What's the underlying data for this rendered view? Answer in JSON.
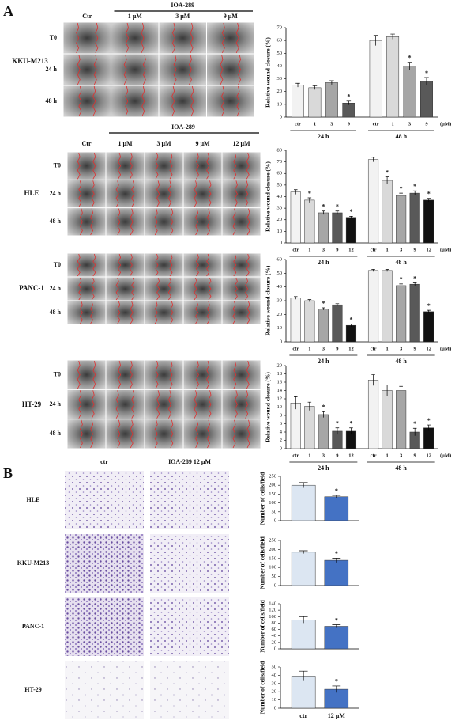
{
  "panel_a": {
    "label": "A",
    "rows": [
      {
        "cell_line": "KKU-M213",
        "treatment": "IOA-289",
        "columns": [
          "Ctr",
          "1 μM",
          "3 μM",
          "9 μM"
        ],
        "times": [
          "T0",
          "24 h",
          "48 h"
        ]
      },
      {
        "cell_line": "HLE",
        "treatment": "IOA-289",
        "columns": [
          "Ctr",
          "1 μM",
          "3 μM",
          "9 μM",
          "12 μM"
        ],
        "times": [
          "T0",
          "24 h",
          "48 h"
        ]
      },
      {
        "cell_line": "PANC-1",
        "times": [
          "T0",
          "24 h",
          "48 h"
        ]
      },
      {
        "cell_line": "HT-29",
        "times": [
          "T0",
          "24 h",
          "48 h"
        ]
      }
    ]
  },
  "panel_b": {
    "label": "B",
    "columns": [
      "ctr",
      "IOA-289 12 μM"
    ],
    "cell_lines": [
      "HLE",
      "KKU-M213",
      "PANC-1",
      "HT-29"
    ]
  },
  "chart_data": [
    {
      "type": "bar",
      "y_label": "Relative wound closure (%)",
      "categories": [
        "ctr",
        "1",
        "3",
        "9",
        "ctr",
        "1",
        "3",
        "9"
      ],
      "groups": [
        "24 h",
        "48 h"
      ],
      "unit": "(μM)",
      "values": [
        25,
        23,
        27,
        11,
        60,
        63,
        40,
        28
      ],
      "errors": [
        1.5,
        1.5,
        1.5,
        1.5,
        4,
        2,
        3,
        3
      ],
      "colors": [
        "#f2f2f2",
        "#d9d9d9",
        "#a6a6a6",
        "#595959",
        "#f2f2f2",
        "#d9d9d9",
        "#a6a6a6",
        "#595959"
      ],
      "significant": [
        3,
        6,
        7
      ],
      "marker": "*",
      "ylim": [
        0,
        70
      ],
      "yticks": [
        0,
        10,
        20,
        30,
        40,
        50,
        60,
        70
      ]
    },
    {
      "type": "bar",
      "y_label": "Relative wound closure (%)",
      "categories": [
        "ctr",
        "1",
        "3",
        "9",
        "12",
        "ctr",
        "1",
        "3",
        "9",
        "12"
      ],
      "groups": [
        "24 h",
        "48 h"
      ],
      "unit": "(μM)",
      "values": [
        44,
        37,
        26,
        26,
        22,
        72,
        54,
        41,
        43,
        37
      ],
      "errors": [
        2,
        2,
        1.5,
        1.5,
        1,
        2,
        3,
        2,
        2,
        1.5
      ],
      "colors": [
        "#f2f2f2",
        "#d9d9d9",
        "#a6a6a6",
        "#595959",
        "#111111",
        "#f2f2f2",
        "#d9d9d9",
        "#a6a6a6",
        "#595959",
        "#111111"
      ],
      "significant": [
        1,
        2,
        3,
        4,
        6,
        7,
        8,
        9
      ],
      "marker": "*",
      "ylim": [
        0,
        80
      ],
      "yticks": [
        0,
        10,
        20,
        30,
        40,
        50,
        60,
        70,
        80
      ]
    },
    {
      "type": "bar",
      "y_label": "Relative wound closure (%)",
      "categories": [
        "ctr",
        "1",
        "3",
        "9",
        "12",
        "ctr",
        "1",
        "3",
        "9",
        "12"
      ],
      "groups": [
        "24 h",
        "48 h"
      ],
      "unit": "(μM)",
      "values": [
        32,
        30,
        24,
        27,
        12,
        52,
        52,
        41,
        42,
        22
      ],
      "errors": [
        1,
        0.8,
        0.8,
        0.8,
        1,
        0.8,
        0.8,
        1.2,
        1,
        1
      ],
      "colors": [
        "#f2f2f2",
        "#d9d9d9",
        "#a6a6a6",
        "#595959",
        "#111111",
        "#f2f2f2",
        "#d9d9d9",
        "#a6a6a6",
        "#595959",
        "#111111"
      ],
      "significant": [
        2,
        4,
        7,
        8,
        9
      ],
      "marker": "*",
      "ylim": [
        0,
        60
      ],
      "yticks": [
        0,
        10,
        20,
        30,
        40,
        50,
        60
      ]
    },
    {
      "type": "bar",
      "y_label": "Relative wound closure (%)",
      "categories": [
        "ctr",
        "1",
        "3",
        "9",
        "12",
        "ctr",
        "1",
        "3",
        "9",
        "12"
      ],
      "groups": [
        "24 h",
        "48 h"
      ],
      "unit": "(μM)",
      "values": [
        11,
        10.2,
        8.2,
        4.2,
        4.2,
        16.5,
        14,
        14,
        4,
        5
      ],
      "errors": [
        1.5,
        1,
        0.7,
        0.8,
        0.8,
        1.3,
        1.3,
        1,
        0.9,
        0.7
      ],
      "colors": [
        "#f2f2f2",
        "#d9d9d9",
        "#a6a6a6",
        "#595959",
        "#111111",
        "#f2f2f2",
        "#d9d9d9",
        "#a6a6a6",
        "#595959",
        "#111111"
      ],
      "significant": [
        2,
        3,
        4,
        8,
        9
      ],
      "marker": "*",
      "ylim": [
        0,
        20
      ],
      "yticks": [
        0,
        2,
        4,
        6,
        8,
        10,
        12,
        14,
        16,
        18,
        20
      ]
    },
    {
      "type": "bar",
      "y_label": "Number of cells/field",
      "categories": [
        null,
        null
      ],
      "values": [
        200,
        135
      ],
      "errors": [
        15,
        8
      ],
      "colors": [
        "#dce6f2",
        "#4472c4"
      ],
      "significant": [
        1
      ],
      "marker": "*",
      "ylim": [
        0,
        250
      ],
      "yticks": [
        0,
        50,
        100,
        150,
        200,
        250
      ]
    },
    {
      "type": "bar",
      "y_label": "Number of cells/field",
      "categories": [
        null,
        null
      ],
      "values": [
        185,
        140
      ],
      "errors": [
        8,
        12
      ],
      "colors": [
        "#dce6f2",
        "#4472c4"
      ],
      "significant": [
        1
      ],
      "marker": "*",
      "ylim": [
        0,
        250
      ],
      "yticks": [
        0,
        50,
        100,
        150,
        200,
        250
      ]
    },
    {
      "type": "bar",
      "y_label": "Number of cells/field",
      "categories": [
        null,
        null
      ],
      "values": [
        90,
        70
      ],
      "errors": [
        10,
        5
      ],
      "colors": [
        "#dce6f2",
        "#4472c4"
      ],
      "significant": [
        1
      ],
      "marker": "*",
      "ylim": [
        0,
        140
      ],
      "yticks": [
        0,
        20,
        40,
        60,
        80,
        100,
        120,
        140
      ]
    },
    {
      "type": "bar",
      "y_label": "Number of cells/field",
      "categories": [
        "ctr",
        "12 μM"
      ],
      "values": [
        39,
        23
      ],
      "errors": [
        6,
        4
      ],
      "colors": [
        "#dce6f2",
        "#4472c4"
      ],
      "significant": [
        1
      ],
      "marker": "*",
      "ylim": [
        0,
        50
      ],
      "yticks": [
        0,
        10,
        20,
        30,
        40,
        50
      ]
    }
  ]
}
